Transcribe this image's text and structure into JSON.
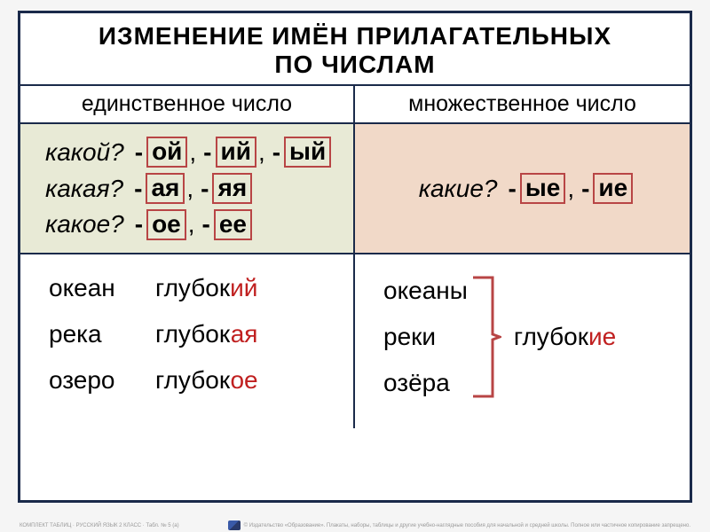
{
  "title_line1": "ИЗМЕНЕНИЕ ИМЁН ПРИЛАГАТЕЛЬНЫХ",
  "title_line2": "ПО ЧИСЛАМ",
  "headers": {
    "singular": "единственное число",
    "plural": "множественное число"
  },
  "singular_endings": [
    {
      "q": "какой?",
      "endings": [
        "ой",
        "ий",
        "ый"
      ]
    },
    {
      "q": "какая?",
      "endings": [
        "ая",
        "яя"
      ]
    },
    {
      "q": "какое?",
      "endings": [
        "ое",
        "ее"
      ]
    }
  ],
  "plural_endings": {
    "q": "какие?",
    "endings": [
      "ые",
      "ие"
    ]
  },
  "singular_examples": [
    {
      "noun": "океан",
      "root": "глубок",
      "suf": "ий"
    },
    {
      "noun": "река",
      "root": "глубок",
      "suf": "ая"
    },
    {
      "noun": "озеро",
      "root": "глубок",
      "ое": "ое",
      "suf": "ое"
    }
  ],
  "plural_examples": {
    "nouns": [
      "океаны",
      "реки",
      "озёра"
    ],
    "adj_root": "глубок",
    "adj_suf": "ие"
  },
  "colors": {
    "frame": "#1a2a4a",
    "singular_bg": "#e8ead6",
    "plural_bg": "#f1d9c8",
    "ending_border": "#b84545",
    "suffix_color": "#c02020",
    "bracket_color": "#b84545"
  },
  "footer": {
    "left": "КОМПЛЕКТ ТАБЛИЦ · РУССКИЙ ЯЗЫК 2 КЛАСС · Табл. № 5 (а)",
    "right": "© Издательство «Образование». Плакаты, наборы, таблицы и другие учебно-наглядные пособия для начальной и средней школы. Полное или частичное копирование запрещено."
  }
}
